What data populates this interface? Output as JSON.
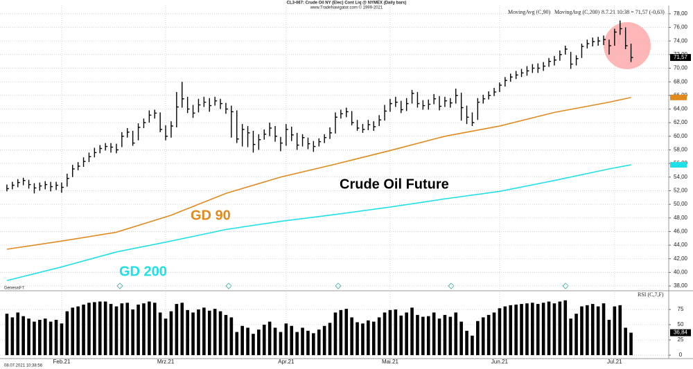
{
  "chart_data": [
    {
      "type": "ohlc",
      "title": "CL3-067: Crude Oil NY (Elec) Cont Liq @ NYMEX (Daily bars)",
      "subtitle": "www.TradeNavigator.com © 1999-2021",
      "quote": "8.7.21 10:38 = 71,57 (-0,63)",
      "last_price_label": "71,57",
      "watermark": "GenesisFT",
      "timestamp": "08.07.2021 10:38:56",
      "color": "#000000",
      "categories": [
        null,
        null,
        null,
        null,
        null,
        null,
        null,
        null,
        null,
        null,
        "Feb.21",
        null,
        null,
        null,
        null,
        null,
        null,
        null,
        null,
        null,
        null,
        null,
        null,
        null,
        null,
        null,
        null,
        null,
        null,
        "Mrz.21",
        null,
        null,
        null,
        null,
        null,
        null,
        null,
        null,
        null,
        null,
        null,
        null,
        null,
        null,
        null,
        null,
        null,
        null,
        null,
        null,
        null,
        "Apr.21",
        null,
        null,
        null,
        null,
        null,
        null,
        null,
        null,
        null,
        null,
        null,
        null,
        null,
        null,
        null,
        null,
        null,
        null,
        "Mai.21",
        null,
        null,
        null,
        null,
        null,
        null,
        null,
        null,
        null,
        null,
        null,
        null,
        null,
        null,
        null,
        null,
        null,
        null,
        null,
        "Jun.21",
        null,
        null,
        null,
        null,
        null,
        null,
        null,
        null,
        null,
        null,
        null,
        null,
        null,
        null,
        null,
        null,
        null,
        null,
        null,
        null,
        "Jul.21",
        null,
        null,
        null
      ],
      "high": [
        52.9,
        53.3,
        53.7,
        53.9,
        53.6,
        53.1,
        53.2,
        53.4,
        53.3,
        53.3,
        53.2,
        54.5,
        55.8,
        56.2,
        56.9,
        57.6,
        58.3,
        58.7,
        59.0,
        59.0,
        58.9,
        60.6,
        61.2,
        60.8,
        61.9,
        62.6,
        63.8,
        63.9,
        63.5,
        61.6,
        62.2,
        66.5,
        68.0,
        65.8,
        64.6,
        65.5,
        65.8,
        65.6,
        65.8,
        65.5,
        64.9,
        64.5,
        63.8,
        61.8,
        61.5,
        60.8,
        60.3,
        61.0,
        62.0,
        61.5,
        59.9,
        61.8,
        61.4,
        60.5,
        60.3,
        59.8,
        59.3,
        59.7,
        60.3,
        61.3,
        63.5,
        63.9,
        64.2,
        63.7,
        62.4,
        61.8,
        62.4,
        62.2,
        63.1,
        64.6,
        65.5,
        65.8,
        65.2,
        65.6,
        66.8,
        66.5,
        65.3,
        65.4,
        66.2,
        65.9,
        65.8,
        65.6,
        67.0,
        66.4,
        64.5,
        63.5,
        65.6,
        66.1,
        66.6,
        67.1,
        67.9,
        68.7,
        69.2,
        69.6,
        69.9,
        70.3,
        70.6,
        70.7,
        70.9,
        71.5,
        71.8,
        72.6,
        73.3,
        72.4,
        71.9,
        73.6,
        74.2,
        74.5,
        74.6,
        74.8,
        74.2,
        75.8,
        77.0,
        76.0,
        73.6
      ],
      "low": [
        51.9,
        52.2,
        52.5,
        52.8,
        52.3,
        51.6,
        52.0,
        52.2,
        51.9,
        52.1,
        51.7,
        52.6,
        54.0,
        55.0,
        55.5,
        56.2,
        56.9,
        57.5,
        57.9,
        57.6,
        57.5,
        58.4,
        59.8,
        58.6,
        59.4,
        61.2,
        62.0,
        62.6,
        60.6,
        59.4,
        59.8,
        61.3,
        64.2,
        63.4,
        62.7,
        63.5,
        64.3,
        63.6,
        64.5,
        64.0,
        63.3,
        59.8,
        59.0,
        58.5,
        58.4,
        57.6,
        58.0,
        59.5,
        60.0,
        59.2,
        57.8,
        58.6,
        59.3,
        58.0,
        58.5,
        58.1,
        57.7,
        58.5,
        59.0,
        59.6,
        60.4,
        62.6,
        62.8,
        61.6,
        60.8,
        60.5,
        60.9,
        60.8,
        61.5,
        62.3,
        63.6,
        64.3,
        63.4,
        63.7,
        64.8,
        64.2,
        63.9,
        63.9,
        64.7,
        63.8,
        64.3,
        64.2,
        64.8,
        62.3,
        61.8,
        61.5,
        62.4,
        64.8,
        65.4,
        65.9,
        66.5,
        67.3,
        68.0,
        68.4,
        68.7,
        68.9,
        69.3,
        69.3,
        69.6,
        70.2,
        70.4,
        71.1,
        72.0,
        69.9,
        70.4,
        71.5,
        72.9,
        73.2,
        73.3,
        73.4,
        72.0,
        73.3,
        74.9,
        72.8,
        70.9
      ],
      "close": [
        52.3,
        52.8,
        53.2,
        53.5,
        52.9,
        52.4,
        52.7,
        52.9,
        52.6,
        52.8,
        52.5,
        53.8,
        55.2,
        55.6,
        56.3,
        57.0,
        57.6,
        58.2,
        58.5,
        58.4,
        58.0,
        60.0,
        60.6,
        59.0,
        61.3,
        62.0,
        63.1,
        63.4,
        61.0,
        60.0,
        61.5,
        64.3,
        65.5,
        64.0,
        63.4,
        64.6,
        65.0,
        64.5,
        65.2,
        64.8,
        64.0,
        63.6,
        59.6,
        61.0,
        60.5,
        58.8,
        59.5,
        60.3,
        61.2,
        60.0,
        59.0,
        61.0,
        60.2,
        58.7,
        59.8,
        58.9,
        58.5,
        59.2,
        59.8,
        60.5,
        62.8,
        63.3,
        63.6,
        62.0,
        61.2,
        61.0,
        61.7,
        61.4,
        62.4,
        63.7,
        64.8,
        65.0,
        63.9,
        64.8,
        66.3,
        64.8,
        64.5,
        64.7,
        65.5,
        64.4,
        65.2,
        64.9,
        66.0,
        64.2,
        62.8,
        62.0,
        65.0,
        65.5,
        66.0,
        66.5,
        67.5,
        68.2,
        68.7,
        69.0,
        69.3,
        69.6,
        70.0,
        70.0,
        70.3,
        71.0,
        71.2,
        72.0,
        72.8,
        70.6,
        71.4,
        73.2,
        73.6,
        73.9,
        74.0,
        74.2,
        73.3,
        75.3,
        75.8,
        73.3,
        71.57
      ],
      "moving_averages": [
        {
          "name": "MovingAvg (C,90)",
          "color": "#e08a1e",
          "x": [
            0,
            10,
            20,
            30,
            40,
            50,
            60,
            70,
            80,
            90,
            100,
            110,
            114
          ],
          "values": [
            43.4,
            44.6,
            45.9,
            48.4,
            51.6,
            54.0,
            55.9,
            57.9,
            60.0,
            61.5,
            63.5,
            65.0,
            65.7
          ]
        },
        {
          "name": "MovingAvg (C,200)",
          "color": "#1fe0e6",
          "x": [
            0,
            10,
            20,
            30,
            40,
            50,
            60,
            70,
            80,
            90,
            100,
            110,
            114
          ],
          "values": [
            38.8,
            40.8,
            43.0,
            44.6,
            46.3,
            47.5,
            48.5,
            49.6,
            50.8,
            51.9,
            53.5,
            55.2,
            55.8
          ]
        }
      ],
      "annotations": [
        {
          "text": "Crude Oil Future",
          "color": "#000000"
        },
        {
          "text": "GD 90",
          "color": "#e08a1e"
        },
        {
          "text": "GD 200",
          "color": "#1fe0e6"
        }
      ],
      "ylim": [
        37.5,
        79
      ],
      "yticks": [
        {
          "value": 38,
          "label": "38,00"
        },
        {
          "value": 40,
          "label": "40,00"
        },
        {
          "value": 42,
          "label": "42,00"
        },
        {
          "value": 44,
          "label": "44,00"
        },
        {
          "value": 46,
          "label": "46,00"
        },
        {
          "value": 48,
          "label": "48,00"
        },
        {
          "value": 50,
          "label": "50,00"
        },
        {
          "value": 52,
          "label": "52,00"
        },
        {
          "value": 54,
          "label": "54,00"
        },
        {
          "value": 56,
          "label": "56,00"
        },
        {
          "value": 58,
          "label": "58,00"
        },
        {
          "value": 60,
          "label": "60,00"
        },
        {
          "value": 62,
          "label": "62,00"
        },
        {
          "value": 64,
          "label": "64,00"
        },
        {
          "value": 66,
          "label": "66,00"
        },
        {
          "value": 68,
          "label": "68,00"
        },
        {
          "value": 70,
          "label": "70,00"
        },
        {
          "value": 72,
          "label": "72,00"
        },
        {
          "value": 74,
          "label": "74,00"
        },
        {
          "value": 76,
          "label": "76,00"
        },
        {
          "value": 78,
          "label": "78,00"
        }
      ],
      "grid": true
    },
    {
      "type": "bar",
      "title": "RSI (C,7,F)",
      "color": "#000000",
      "last_value_label": "36,84",
      "values": [
        68,
        62,
        70,
        64,
        60,
        55,
        58,
        60,
        55,
        58,
        52,
        72,
        78,
        80,
        83,
        86,
        87,
        88,
        88,
        84,
        80,
        85,
        86,
        75,
        83,
        85,
        88,
        86,
        70,
        60,
        72,
        84,
        86,
        74,
        70,
        75,
        78,
        73,
        76,
        72,
        66,
        62,
        38,
        48,
        45,
        35,
        42,
        50,
        55,
        45,
        38,
        52,
        48,
        38,
        45,
        40,
        36,
        42,
        48,
        53,
        70,
        74,
        76,
        62,
        54,
        52,
        57,
        55,
        62,
        70,
        74,
        75,
        65,
        70,
        78,
        66,
        63,
        64,
        70,
        60,
        66,
        63,
        70,
        55,
        40,
        32,
        56,
        62,
        66,
        70,
        77,
        80,
        82,
        83,
        84,
        85,
        86,
        84,
        86,
        88,
        85,
        88,
        90,
        60,
        68,
        80,
        82,
        84,
        80,
        85,
        58,
        80,
        82,
        45,
        36.84
      ],
      "ylim": [
        0,
        100
      ],
      "yticks": [
        0,
        25,
        50,
        75
      ],
      "grid": true
    }
  ]
}
